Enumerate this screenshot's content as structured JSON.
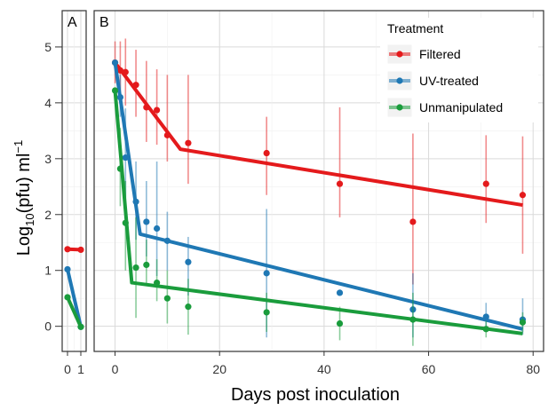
{
  "chart_data": {
    "type": "scatter",
    "ylabel": "Log10(pfu) ml−1",
    "xlabel": "Days post inoculation",
    "legend_title": "Treatment",
    "legend_position": "top-right",
    "grid": true,
    "ylim": [
      -0.45,
      5.65
    ],
    "yticks": [
      0,
      1,
      2,
      3,
      4,
      5
    ],
    "colors": {
      "Filtered": "#e41a1c",
      "UV-treated": "#1f78b4",
      "Unmanipulated": "#1a9c3c"
    },
    "panels": [
      {
        "label": "A",
        "xlim": [
          -0.4,
          1.4
        ],
        "xticks": [
          0,
          1
        ],
        "xtick_labels": [
          "0",
          "1"
        ],
        "series": [
          {
            "name": "Filtered",
            "points": [
              {
                "x": 0,
                "y": 1.38
              },
              {
                "x": 1,
                "y": 1.37
              }
            ],
            "fit": [
              [
                0,
                1.38
              ],
              [
                1,
                1.37
              ]
            ]
          },
          {
            "name": "UV-treated",
            "points": [
              {
                "x": 0,
                "y": 1.02
              },
              {
                "x": 1,
                "y": -0.01
              }
            ],
            "fit": [
              [
                0,
                1.02
              ],
              [
                1,
                -0.01
              ]
            ]
          },
          {
            "name": "Unmanipulated",
            "points": [
              {
                "x": 0,
                "y": 0.52
              },
              {
                "x": 1,
                "y": -0.01
              }
            ],
            "fit": [
              [
                0,
                0.52
              ],
              [
                1,
                -0.01
              ]
            ]
          }
        ]
      },
      {
        "label": "B",
        "xlim": [
          -4,
          82
        ],
        "xticks": [
          0,
          20,
          40,
          60,
          80
        ],
        "xtick_labels": [
          "0",
          "20",
          "40",
          "60",
          "80"
        ],
        "series": [
          {
            "name": "Filtered",
            "points": [
              {
                "x": 0,
                "y": 4.72,
                "lo": 4.35,
                "hi": 5.1
              },
              {
                "x": 1,
                "y": 4.58,
                "lo": 4.15,
                "hi": 5.1
              },
              {
                "x": 2,
                "y": 4.55,
                "lo": 3.95,
                "hi": 5.15
              },
              {
                "x": 4,
                "y": 4.32,
                "lo": 3.75,
                "hi": 4.95
              },
              {
                "x": 6,
                "y": 3.92,
                "lo": 3.3,
                "hi": 4.75
              },
              {
                "x": 8,
                "y": 3.87,
                "lo": 3.25,
                "hi": 4.6
              },
              {
                "x": 10,
                "y": 3.42,
                "lo": 2.95,
                "hi": 4.5
              },
              {
                "x": 14,
                "y": 3.28,
                "lo": 2.55,
                "hi": 4.5
              },
              {
                "x": 29,
                "y": 3.1,
                "lo": 2.35,
                "hi": 3.75
              },
              {
                "x": 43,
                "y": 2.55,
                "lo": 1.95,
                "hi": 3.92
              },
              {
                "x": 57,
                "y": 1.87,
                "lo": 0.75,
                "hi": 3.45
              },
              {
                "x": 71,
                "y": 2.55,
                "lo": 1.85,
                "hi": 3.42
              },
              {
                "x": 78,
                "y": 2.35,
                "lo": 1.3,
                "hi": 3.4
              }
            ],
            "fit": [
              [
                0,
                4.72
              ],
              [
                12.5,
                3.17
              ],
              [
                78,
                2.17
              ]
            ]
          },
          {
            "name": "UV-treated",
            "points": [
              {
                "x": 0,
                "y": 4.72
              },
              {
                "x": 1,
                "y": 4.1,
                "lo": 3.75,
                "hi": 4.5
              },
              {
                "x": 2,
                "y": 3.02,
                "lo": 2.3,
                "hi": 3.9
              },
              {
                "x": 4,
                "y": 2.23,
                "lo": 1.55,
                "hi": 2.95
              },
              {
                "x": 6,
                "y": 1.87,
                "lo": 1.25,
                "hi": 2.6
              },
              {
                "x": 8,
                "y": 1.75,
                "lo": 0.9,
                "hi": 2.95
              },
              {
                "x": 10,
                "y": 1.53,
                "lo": 1.0,
                "hi": 2.05
              },
              {
                "x": 14,
                "y": 1.15,
                "lo": 0.55,
                "hi": 1.6
              },
              {
                "x": 29,
                "y": 0.95,
                "lo": -0.2,
                "hi": 2.1
              },
              {
                "x": 43,
                "y": 0.6
              },
              {
                "x": 57,
                "y": 0.3,
                "lo": -0.2,
                "hi": 0.95
              },
              {
                "x": 71,
                "y": 0.17,
                "lo": -0.05,
                "hi": 0.42
              },
              {
                "x": 78,
                "y": 0.12,
                "lo": -0.15,
                "hi": 0.5
              }
            ],
            "fit": [
              [
                0,
                4.72
              ],
              [
                4.8,
                1.65
              ],
              [
                78,
                -0.05
              ]
            ]
          },
          {
            "name": "Unmanipulated",
            "points": [
              {
                "x": 0,
                "y": 4.22
              },
              {
                "x": 1,
                "y": 2.82,
                "lo": 2.15,
                "hi": 3.55
              },
              {
                "x": 2,
                "y": 1.85,
                "lo": 1.0,
                "hi": 2.6
              },
              {
                "x": 4,
                "y": 1.05,
                "lo": 0.15,
                "hi": 1.95
              },
              {
                "x": 6,
                "y": 1.1,
                "lo": 0.75,
                "hi": 1.55
              },
              {
                "x": 8,
                "y": 0.78,
                "lo": 0.45,
                "hi": 1.2
              },
              {
                "x": 10,
                "y": 0.5,
                "lo": 0.05,
                "hi": 1.0
              },
              {
                "x": 14,
                "y": 0.35,
                "lo": -0.15,
                "hi": 0.85
              },
              {
                "x": 29,
                "y": 0.25,
                "lo": -0.1,
                "hi": 0.6
              },
              {
                "x": 43,
                "y": 0.05,
                "lo": -0.25,
                "hi": 0.35
              },
              {
                "x": 57,
                "y": 0.12,
                "lo": -0.35,
                "hi": 0.6
              },
              {
                "x": 71,
                "y": -0.05,
                "lo": -0.2,
                "hi": 0.1
              },
              {
                "x": 78,
                "y": 0.07,
                "lo": -0.1,
                "hi": 0.25
              }
            ],
            "fit": [
              [
                0,
                4.22
              ],
              [
                3.2,
                0.78
              ],
              [
                78,
                -0.13
              ]
            ]
          }
        ]
      }
    ]
  }
}
